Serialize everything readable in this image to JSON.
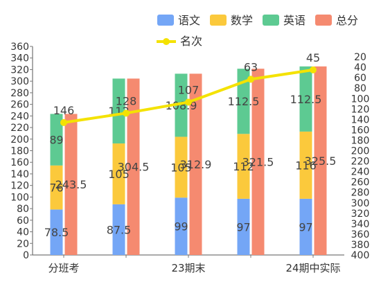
{
  "chart_data": {
    "type": "bar",
    "categories": [
      "分班考",
      "",
      "23期末",
      "",
      "24期中实际"
    ],
    "x_tick_labels_shown": [
      "分班考",
      "23期末",
      "24期中实际"
    ],
    "series": [
      {
        "name": "语文",
        "kind": "stacked-bar",
        "color": "#74a6f6",
        "values": [
          78.5,
          87.5,
          99,
          97,
          97
        ]
      },
      {
        "name": "数学",
        "kind": "stacked-bar",
        "color": "#fbc93c",
        "values": [
          76,
          105,
          105,
          112,
          116
        ]
      },
      {
        "name": "英语",
        "kind": "stacked-bar",
        "color": "#5dca92",
        "values": [
          89,
          112,
          108.9,
          112.5,
          112.5
        ]
      },
      {
        "name": "总分",
        "kind": "bar",
        "color": "#f58a70",
        "values": [
          243.5,
          304.5,
          312.9,
          321.5,
          325.5
        ]
      },
      {
        "name": "名次",
        "kind": "line",
        "axis": "right",
        "color": "#f4e200",
        "values": [
          146,
          128,
          107,
          63,
          45
        ]
      }
    ],
    "data_labels": {
      "语文": [
        "78.5",
        "87.5",
        "99",
        "97",
        "97"
      ],
      "数学": [
        "76",
        "105",
        "105",
        "112",
        "116"
      ],
      "英语": [
        "89",
        "112",
        "108.9",
        "112.5",
        "112.5"
      ],
      "总分": [
        "243.5",
        "304.5",
        "312.9",
        "321.5",
        "325.5"
      ],
      "名次": [
        "146",
        "128",
        "107",
        "63",
        "45"
      ]
    },
    "y_left": {
      "min": 0,
      "max": 360,
      "step": 20,
      "ticks": [
        "0",
        "20",
        "40",
        "60",
        "80",
        "100",
        "120",
        "140",
        "160",
        "180",
        "200",
        "220",
        "240",
        "260",
        "280",
        "300",
        "320",
        "340",
        "360"
      ]
    },
    "y_right": {
      "min": 0,
      "max": 400,
      "step": 20,
      "inverted": true,
      "ticks": [
        "20",
        "40",
        "60",
        "80",
        "100",
        "120",
        "140",
        "160",
        "180",
        "200",
        "220",
        "240",
        "260",
        "280",
        "300",
        "320",
        "340",
        "360",
        "380",
        "400"
      ]
    },
    "legend": {
      "placement": "top-right",
      "entries": [
        "语文",
        "数学",
        "英语",
        "总分",
        "名次"
      ]
    },
    "title": "",
    "xlabel": "",
    "ylabel": "",
    "grid": false
  }
}
